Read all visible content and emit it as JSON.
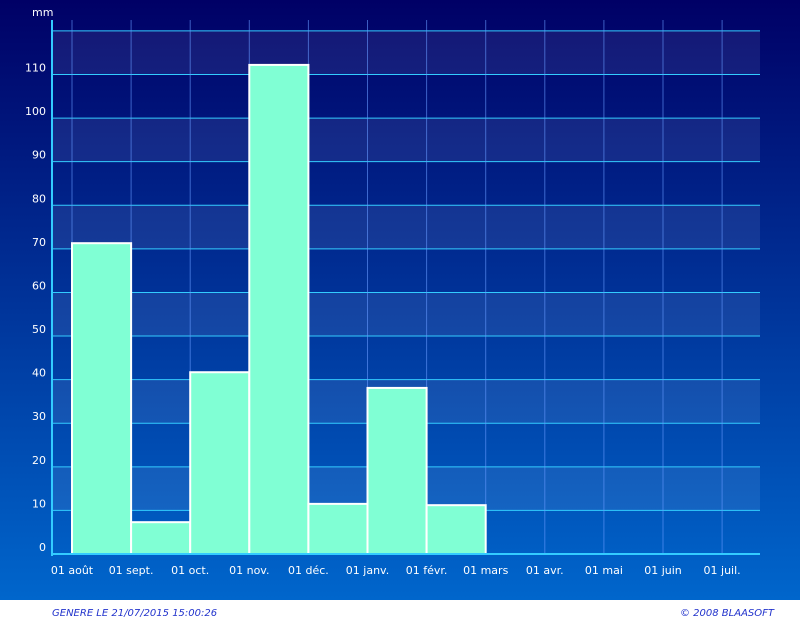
{
  "chart_data": {
    "type": "bar",
    "y_label": "mm",
    "categories": [
      "01 août",
      "01 sept.",
      "01 oct.",
      "01 nov.",
      "01 déc.",
      "01 janv.",
      "01 févr.",
      "01 mars",
      "01 avr.",
      "01 mai",
      "01 juin",
      "01 juil."
    ],
    "values": [
      71.3,
      7.3,
      41.7,
      112.2,
      11.5,
      38.1,
      11.2,
      null,
      null,
      null,
      null,
      null
    ],
    "color": "#80ffd4",
    "ylim": [
      0,
      122.5
    ],
    "yticks": [
      0,
      10,
      20,
      30,
      40,
      50,
      60,
      70,
      80,
      90,
      100,
      110,
      {
        "value": 120,
        "label": null
      }
    ],
    "grid": true
  },
  "footer": {
    "generated": "GENERE LE 21/07/2015 15:00:26",
    "copyright": "© 2008 BLAASOFT"
  }
}
